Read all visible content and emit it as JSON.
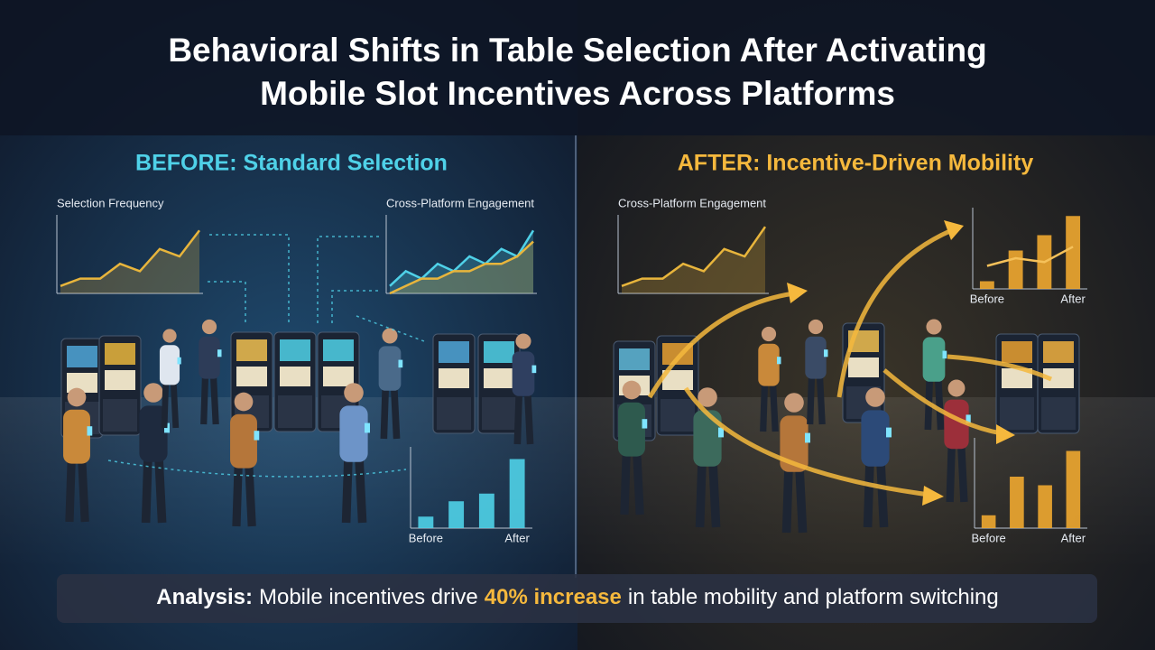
{
  "title": {
    "line1": "Behavioral Shifts in Table Selection After Activating",
    "line2": "Mobile Slot Incentives Across Platforms"
  },
  "before": {
    "heading": "BEFORE: Standard Selection",
    "charts": [
      {
        "type": "line",
        "title": "Selection Frequency",
        "ylim": [
          0,
          10
        ],
        "area": true,
        "series": [
          {
            "color": "#e8b53c",
            "values": [
              1,
              2,
              2,
              4,
              3,
              6,
              5,
              8.5
            ]
          }
        ]
      },
      {
        "type": "line",
        "title": "Cross-Platform Engagement",
        "ylim": [
          0,
          10
        ],
        "area": true,
        "series": [
          {
            "color": "#4fd1e8",
            "values": [
              1,
              3,
              2,
              4,
              3,
              5,
              4,
              6,
              5,
              8.5
            ]
          },
          {
            "color": "#e8b53c",
            "values": [
              0,
              1,
              2,
              2,
              3,
              3,
              4,
              4,
              5,
              7
            ]
          }
        ]
      },
      {
        "type": "bar",
        "ylim": [
          0,
          10
        ],
        "categories": [
          "Before",
          null,
          null,
          "After"
        ],
        "series": [
          {
            "color": "#4fd1e8",
            "values": [
              1.5,
              3.5,
              4.5,
              9
            ]
          }
        ]
      }
    ]
  },
  "after": {
    "heading": "AFTER: Incentive-Driven Mobility",
    "charts": [
      {
        "type": "line",
        "title": "Cross-Platform Engagement",
        "ylim": [
          0,
          10
        ],
        "area": true,
        "series": [
          {
            "color": "#e8b53c",
            "values": [
              1,
              2,
              2,
              4,
              3,
              6,
              5,
              9
            ]
          }
        ]
      },
      {
        "type": "bar",
        "ylim": [
          0,
          10
        ],
        "categories": [
          "Before",
          null,
          null,
          "After"
        ],
        "series": [
          {
            "color": "#f0a830",
            "values": [
              1,
              5,
              7,
              9.5
            ]
          },
          {
            "type": "line",
            "color": "#f5c15a",
            "values": [
              3,
              4,
              3.5,
              5.5
            ]
          }
        ]
      },
      {
        "type": "bar",
        "ylim": [
          0,
          10
        ],
        "categories": [
          "Before",
          null,
          null,
          "After"
        ],
        "series": [
          {
            "color": "#f0a830",
            "values": [
              1.5,
              6,
              5,
              9
            ]
          }
        ]
      }
    ]
  },
  "analysis": {
    "label": "Analysis:",
    "text1": "Mobile incentives drive",
    "highlight": "40% increase",
    "text2": "in table mobility and platform switching"
  }
}
